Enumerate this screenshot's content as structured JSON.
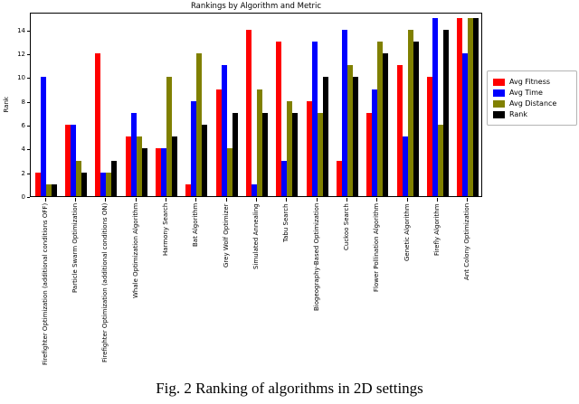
{
  "caption": "Fig. 2 Ranking of algorithms in 2D settings",
  "chart_data": {
    "type": "bar",
    "title": "Rankings by Algorithm and Metric",
    "xlabel": "",
    "ylabel": "Rank",
    "ylim": [
      0,
      15.5
    ],
    "yticks": [
      0,
      2,
      4,
      6,
      8,
      10,
      12,
      14
    ],
    "grid": false,
    "legend_position": "right-outside",
    "categories": [
      "Firefighter Optimization (additional conditions OFF)",
      "Particle Swarm Optimization",
      "Firefighter Optimization (additional conditions ON)",
      "Whale Optimization Algorithm",
      "Harmony Search",
      "Bat Algorithm",
      "Grey Wolf Optimizer",
      "Simulated Annealing",
      "Tabu Search",
      "Biogeography-Based Optimization",
      "Cuckoo Search",
      "Flower Pollination Algorithm",
      "Genetic Algorithm",
      "Firefly Algorithm",
      "Ant Colony Optimization"
    ],
    "series": [
      {
        "name": "Avg Fitness",
        "color": "#ff0000",
        "values": [
          2,
          6,
          12,
          5,
          4,
          1,
          9,
          14,
          13,
          8,
          3,
          7,
          11,
          10,
          15
        ]
      },
      {
        "name": "Avg Time",
        "color": "#0000ff",
        "values": [
          10,
          6,
          2,
          7,
          4,
          8,
          11,
          1,
          3,
          13,
          14,
          9,
          5,
          15,
          12
        ]
      },
      {
        "name": "Avg Distance",
        "color": "#808000",
        "values": [
          1,
          3,
          2,
          5,
          10,
          12,
          4,
          9,
          8,
          7,
          11,
          13,
          14,
          6,
          15
        ]
      },
      {
        "name": "Rank",
        "color": "#000000",
        "values": [
          1,
          2,
          3,
          4,
          5,
          6,
          7,
          7,
          7,
          10,
          10,
          12,
          13,
          14,
          15
        ]
      }
    ]
  }
}
